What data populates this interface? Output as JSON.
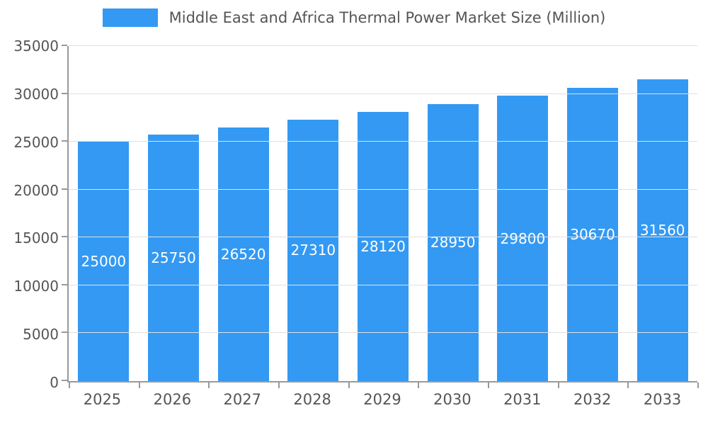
{
  "chart_data": {
    "type": "bar",
    "title": "Middle East and Africa Thermal Power Market Size (Million)",
    "categories": [
      "2025",
      "2026",
      "2027",
      "2028",
      "2029",
      "2030",
      "2031",
      "2032",
      "2033"
    ],
    "values": [
      25000,
      25750,
      26520,
      27310,
      28120,
      28950,
      29800,
      30670,
      31560
    ],
    "xlabel": "",
    "ylabel": "",
    "ylim": [
      0,
      35000
    ],
    "yticks": [
      0,
      5000,
      10000,
      15000,
      20000,
      25000,
      30000,
      35000
    ],
    "grid": true,
    "legend_position": "top",
    "colors": {
      "bar": "#3399f3",
      "bar_label": "#ffffff",
      "axis_text": "#555555",
      "gridline": "#e0e0e0",
      "axis_line": "#999999",
      "background": "#ffffff"
    }
  }
}
